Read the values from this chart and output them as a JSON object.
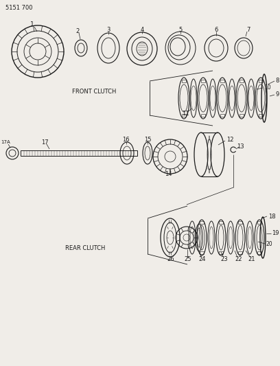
{
  "title_code": "5151 700",
  "bg_color": "#f0ede8",
  "line_color": "#1a1a1a",
  "label_color": "#1a1a1a",
  "front_clutch_label": "FRONT CLUTCH",
  "rear_clutch_label": "REAR CLUTCH",
  "fig_width": 4.08,
  "fig_height": 5.33,
  "dpi": 100
}
